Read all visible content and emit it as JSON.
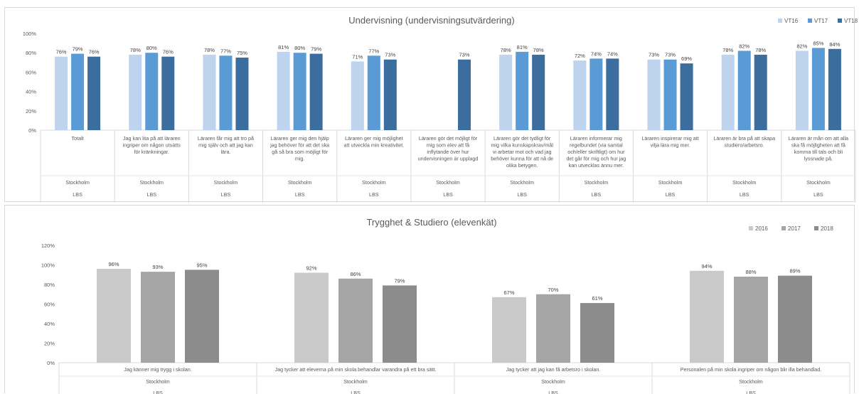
{
  "chart_data": [
    {
      "type": "bar",
      "title": "Undervisning (undervisningsutvärdering)",
      "colors": [
        "#bdd3ee",
        "#5b9bd5",
        "#3b6e9f"
      ],
      "series": [
        {
          "name": "VT16",
          "values": [
            76,
            78,
            78,
            81,
            71,
            null,
            78,
            72,
            73,
            78,
            82
          ]
        },
        {
          "name": "VT17",
          "values": [
            79,
            80,
            77,
            80,
            77,
            null,
            81,
            74,
            73,
            82,
            85
          ]
        },
        {
          "name": "VT18",
          "values": [
            76,
            76,
            75,
            79,
            73,
            73,
            78,
            74,
            69,
            78,
            84
          ]
        }
      ],
      "value_labels": [
        [
          "76%",
          "78%",
          "78%",
          "81%",
          "71%",
          "",
          "78%",
          "72%",
          "73%",
          "78%",
          "82%"
        ],
        [
          "79%",
          "80%",
          "77%",
          "80%",
          "77%",
          "",
          "81%",
          "74%",
          "73%",
          "82%",
          "85%"
        ],
        [
          "76%",
          "76%",
          "75%",
          "79%",
          "73%",
          "73%",
          "78%",
          "74%",
          "69%",
          "78%",
          "84%"
        ]
      ],
      "categories": [
        [
          "Totalt"
        ],
        [
          "Jag kan lita på att läraren",
          "ingriper om någon utsätts",
          "för kränkningar."
        ],
        [
          "Läraren får mig att tro på",
          "mig själv och att jag kan",
          "lära."
        ],
        [
          "Läraren ger mig den hjälp",
          "jag behöver för att det ska",
          "gå så bra som möjligt för",
          "mig."
        ],
        [
          "Läraren ger mig möjlighet",
          "att utveckla min kreativitet."
        ],
        [
          "Läraren gör det möjligt för",
          "mig som elev att få",
          "inflytande över hur",
          "undervisningen är upplagd"
        ],
        [
          "Läraren gör det tydligt för",
          "mig vilka kunskapskrav/mål",
          "vi arbetar mot och vad jag",
          "behöver kunna för att nå de",
          "olika betygen."
        ],
        [
          "Läraren informerar mig",
          "regelbundet (via samtal",
          "och/eller skriftligt) om hur",
          "det går för mig och hur jag",
          "kan utvecklas ännu mer."
        ],
        [
          "Läraren inspirerar mig att",
          "vilja lära mig mer."
        ],
        [
          "Läraren är bra på att skapa",
          "studiero/arbetsro."
        ],
        [
          "Läraren är mån om att alla",
          "ska få möjligheten att få",
          "komma till tals och bli",
          "lyssnade på."
        ]
      ],
      "group_label_1": "Stockholm",
      "group_label_2": "LBS",
      "ylim": [
        0,
        100
      ],
      "yticks": [
        "0%",
        "20%",
        "40%",
        "60%",
        "80%",
        "100%"
      ],
      "legend_position": "top-right",
      "grid": false
    },
    {
      "type": "bar",
      "title": "Trygghet & Studiero (elevenkät)",
      "colors": [
        "#c9c9c9",
        "#a5a5a5",
        "#8c8c8c"
      ],
      "series": [
        {
          "name": "2016",
          "values": [
            96,
            92,
            67,
            94
          ]
        },
        {
          "name": "2017",
          "values": [
            93,
            86,
            70,
            88
          ]
        },
        {
          "name": "2018",
          "values": [
            95,
            79,
            61,
            89
          ]
        }
      ],
      "value_labels": [
        [
          "96%",
          "92%",
          "67%",
          "94%"
        ],
        [
          "93%",
          "86%",
          "70%",
          "88%"
        ],
        [
          "95%",
          "79%",
          "61%",
          "89%"
        ]
      ],
      "categories": [
        [
          "Jag känner mig trygg i skolan."
        ],
        [
          "Jag tycker att eleverna på min skola behandlar varandra på ett bra sätt."
        ],
        [
          "Jag tycker att jag kan få arbetsro i skolan."
        ],
        [
          "Personalen på min skola ingriper om någon blir illa behandlad."
        ]
      ],
      "group_label_1": "Stockholm",
      "group_label_2": "LBS",
      "ylim": [
        0,
        120
      ],
      "yticks": [
        "0%",
        "20%",
        "40%",
        "60%",
        "80%",
        "100%",
        "120%"
      ],
      "legend_position": "top-right",
      "grid": false
    }
  ]
}
